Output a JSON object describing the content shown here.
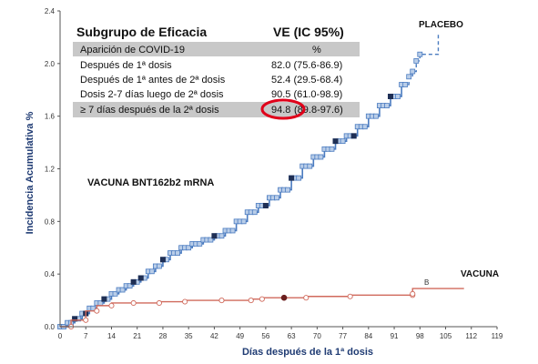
{
  "chart_data": {
    "type": "line",
    "xlabel": "Días después de la 1ª dosis",
    "ylabel": "Incidencia Acumulativa %",
    "xlim": [
      0,
      119
    ],
    "ylim": [
      0,
      2.4
    ],
    "x_ticks": [
      0,
      7,
      14,
      21,
      28,
      35,
      42,
      49,
      56,
      63,
      70,
      77,
      84,
      91,
      98,
      105,
      112,
      119
    ],
    "y_ticks": [
      "0.0",
      "0.4",
      "0.8",
      "1.2",
      "1.6",
      "2.0",
      "2.4"
    ],
    "annotation": "VACUNA BNT162b2 mRNA",
    "colors": {
      "placebo": "#4a7bc0",
      "placebo_fill": "#b9cde8",
      "vacuna": "#d06a5c",
      "highlight": "#e0001a"
    },
    "series": [
      {
        "name": "PLACEBO",
        "line_style": "step",
        "x": [
          0,
          2,
          4,
          6,
          8,
          10,
          12,
          14,
          16,
          18,
          20,
          22,
          24,
          26,
          28,
          30,
          33,
          36,
          39,
          42,
          45,
          48,
          51,
          54,
          57,
          60,
          63,
          66,
          69,
          72,
          75,
          78,
          81,
          84,
          87,
          90,
          93,
          95,
          96,
          97,
          98,
          103,
          103
        ],
        "y": [
          0.0,
          0.03,
          0.06,
          0.1,
          0.14,
          0.18,
          0.21,
          0.25,
          0.28,
          0.31,
          0.34,
          0.37,
          0.42,
          0.46,
          0.51,
          0.56,
          0.6,
          0.63,
          0.66,
          0.69,
          0.73,
          0.8,
          0.87,
          0.92,
          0.98,
          1.04,
          1.13,
          1.22,
          1.29,
          1.35,
          1.41,
          1.45,
          1.52,
          1.6,
          1.68,
          1.75,
          1.84,
          1.9,
          1.94,
          2.02,
          2.07,
          2.07,
          2.22
        ],
        "dark_markers_x": [
          4,
          7,
          12,
          20,
          22,
          28,
          42,
          56,
          63,
          75,
          80,
          90
        ]
      },
      {
        "name": "VACUNA",
        "line_style": "step",
        "x": [
          0,
          3,
          7,
          10,
          14,
          20,
          27,
          34,
          44,
          52,
          55,
          61,
          67,
          79,
          96,
          96,
          103,
          110
        ],
        "y": [
          0.0,
          0.05,
          0.12,
          0.16,
          0.18,
          0.18,
          0.19,
          0.2,
          0.2,
          0.21,
          0.22,
          0.22,
          0.23,
          0.24,
          0.25,
          0.29,
          0.29,
          0.29
        ],
        "dark_markers_x": [
          61
        ]
      }
    ],
    "series_end_marks": [
      "B"
    ],
    "table": {
      "title": "Subgrupo de Eficacia",
      "value_header": "VE (IC 95%)",
      "subheader_label": "Aparición de COVID-19",
      "subheader_value": "%",
      "rows": [
        {
          "label": "Después de 1ª dosis",
          "value": "82.0 (75.6-86.9)",
          "highlight": false
        },
        {
          "label": "Después de 1ª antes de 2ª dosis",
          "value": "52.4 (29.5-68.4)",
          "highlight": false
        },
        {
          "label": "Dosis 2-7 días luego de 2ª dosis",
          "value": "90.5 (61.0-98.9)",
          "highlight": false
        },
        {
          "label": "≥ 7 días después de la 2ª dosis",
          "value_main": "94.8",
          "value_rest": " (89.8-97.6)",
          "highlight": true
        }
      ]
    }
  }
}
